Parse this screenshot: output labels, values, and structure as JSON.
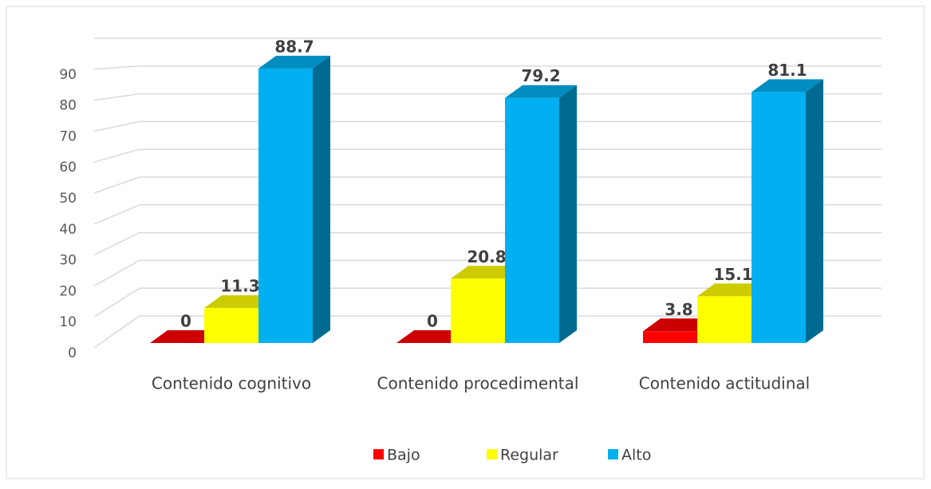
{
  "chart_data": {
    "type": "bar3d",
    "categories": [
      "Contenido cognitivo",
      "Contenido procedimental",
      "Contenido actitudinal"
    ],
    "series": [
      {
        "name": "Bajo",
        "color": "#ff0000",
        "values": [
          0,
          0,
          3.8
        ]
      },
      {
        "name": "Regular",
        "color": "#ffff00",
        "values": [
          11.3,
          20.8,
          15.1
        ]
      },
      {
        "name": "Alto",
        "color": "#00b0f0",
        "values": [
          88.7,
          79.2,
          81.1
        ]
      }
    ],
    "ylim": [
      0,
      100
    ],
    "yticks": [
      0,
      10,
      20,
      30,
      40,
      50,
      60,
      70,
      80,
      90
    ],
    "grid": true,
    "legend": "bottom"
  }
}
